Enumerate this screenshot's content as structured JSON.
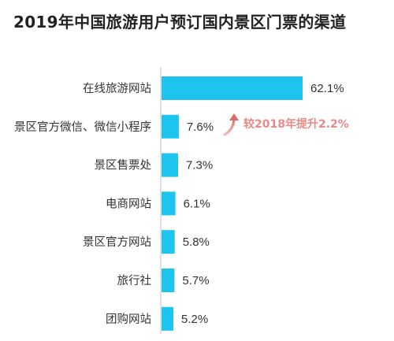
{
  "chart_data": {
    "type": "bar",
    "orientation": "horizontal",
    "title": "2019年中国旅游用户预订国内景区门票的渠道",
    "categories": [
      "在线旅游网站",
      "景区官方微信、微信小程序",
      "景区售票处",
      "电商网站",
      "景区官方网站",
      "旅行社",
      "团购网站"
    ],
    "values": [
      62.1,
      7.6,
      7.3,
      6.1,
      5.8,
      5.7,
      5.2
    ],
    "value_labels": [
      "62.1%",
      "7.6%",
      "7.3%",
      "6.1%",
      "5.8%",
      "5.7%",
      "5.2%"
    ],
    "xlim": [
      0,
      62.1
    ],
    "grid": false,
    "annotation": {
      "text": "较2018年提升2.2%",
      "target_category": "景区官方微信、微信小程序",
      "icon": "trend-up-arrow-icon"
    },
    "colors": {
      "bar": "#1cc4ee",
      "axis": "#bfbfbf",
      "annotation": "#e88a86"
    }
  }
}
